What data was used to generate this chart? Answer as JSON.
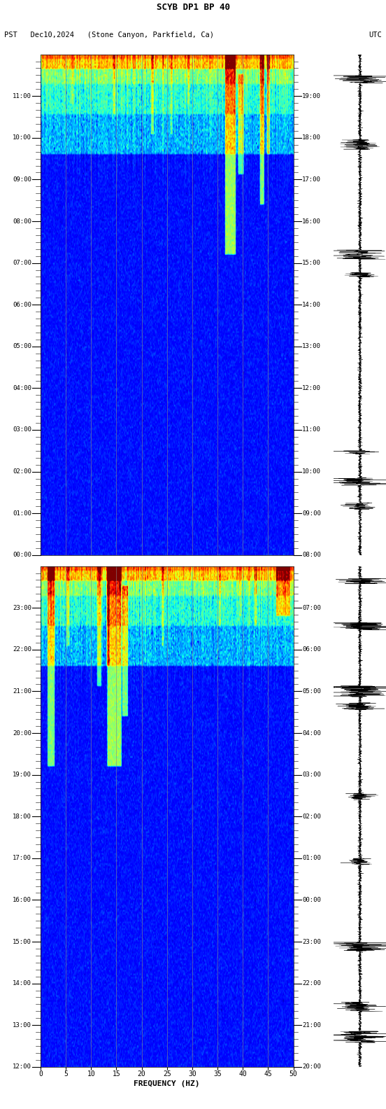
{
  "title_line1": "SCYB DP1 BP 40",
  "title_line2_left": "PST   Dec10,2024   (Stone Canyon, Parkfield, Ca)",
  "title_line2_right": "UTC",
  "freq_label": "FREQUENCY (HZ)",
  "freq_min": 0,
  "freq_max": 50,
  "freq_ticks": [
    0,
    5,
    10,
    15,
    20,
    25,
    30,
    35,
    40,
    45,
    50
  ],
  "left_time_labels_p1": [
    "00:00",
    "01:00",
    "02:00",
    "03:00",
    "04:00",
    "05:00",
    "06:00",
    "07:00",
    "08:00",
    "09:00",
    "10:00",
    "11:00"
  ],
  "left_time_labels_p2": [
    "12:00",
    "13:00",
    "14:00",
    "15:00",
    "16:00",
    "17:00",
    "18:00",
    "19:00",
    "20:00",
    "21:00",
    "22:00",
    "23:00"
  ],
  "right_time_labels_p1": [
    "08:00",
    "09:00",
    "10:00",
    "11:00",
    "12:00",
    "13:00",
    "14:00",
    "15:00",
    "16:00",
    "17:00",
    "18:00",
    "19:00"
  ],
  "right_time_labels_p2": [
    "20:00",
    "21:00",
    "22:00",
    "23:00",
    "00:00",
    "01:00",
    "02:00",
    "03:00",
    "04:00",
    "05:00",
    "06:00",
    "07:00"
  ],
  "background_color": "#ffffff",
  "colormap": "jet",
  "vmin": -15,
  "vmax": 35,
  "vertical_lines_freq": [
    5,
    10,
    15,
    20,
    25,
    30,
    35,
    40,
    45
  ],
  "waveform_color": "#000000"
}
